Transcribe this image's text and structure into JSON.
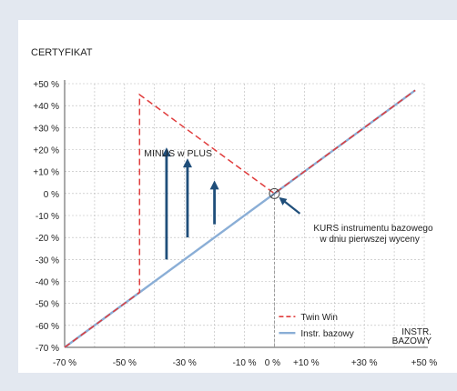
{
  "chart_data": {
    "type": "line",
    "ylabel": "CERTYFIKAT",
    "xlabel_lines": [
      "INSTR.",
      "BAZOWY"
    ],
    "xlim": [
      -70,
      50
    ],
    "ylim": [
      -70,
      50
    ],
    "y_ticks": [
      "+50 %",
      "+40 %",
      "+30 %",
      "+20 %",
      "+10 %",
      "0 %",
      "-10 %",
      "-20 %",
      "-30 %",
      "-40 %",
      "-50 %",
      "-60 %",
      "-70 %"
    ],
    "y_tick_values": [
      50,
      40,
      30,
      20,
      10,
      0,
      -10,
      -20,
      -30,
      -40,
      -50,
      -60,
      -70
    ],
    "x_ticks": [
      "-70 %",
      "-50 %",
      "-30 %",
      "-10 %",
      "0 %",
      "+10 %",
      "+30 %",
      "+50 %"
    ],
    "x_tick_values": [
      -70,
      -50,
      -30,
      -10,
      0,
      10,
      30,
      50
    ],
    "grid": true,
    "series": [
      {
        "name": "Twin Win",
        "color": "#e03c3c",
        "dash": true,
        "x": [
          -70,
          -45,
          -45,
          0,
          47
        ],
        "y": [
          -70,
          -45,
          45,
          0,
          47
        ]
      },
      {
        "name": "Instr. bazowy",
        "color": "#8aaed6",
        "dash": false,
        "x": [
          -70,
          47
        ],
        "y": [
          -70,
          47
        ]
      }
    ],
    "legend_position": "bottom-right",
    "annotations": {
      "minus_plus": "MINUS w PLUS",
      "kurs_lines": [
        "KURS instrumentu bazowego",
        "w dniu pierwszej wyceny"
      ]
    },
    "arrows": [
      {
        "x": -36,
        "y_from": -30,
        "y_to": 21
      },
      {
        "x": -29,
        "y_from": -20,
        "y_to": 16
      },
      {
        "x": -20,
        "y_from": -14,
        "y_to": 6
      }
    ]
  }
}
